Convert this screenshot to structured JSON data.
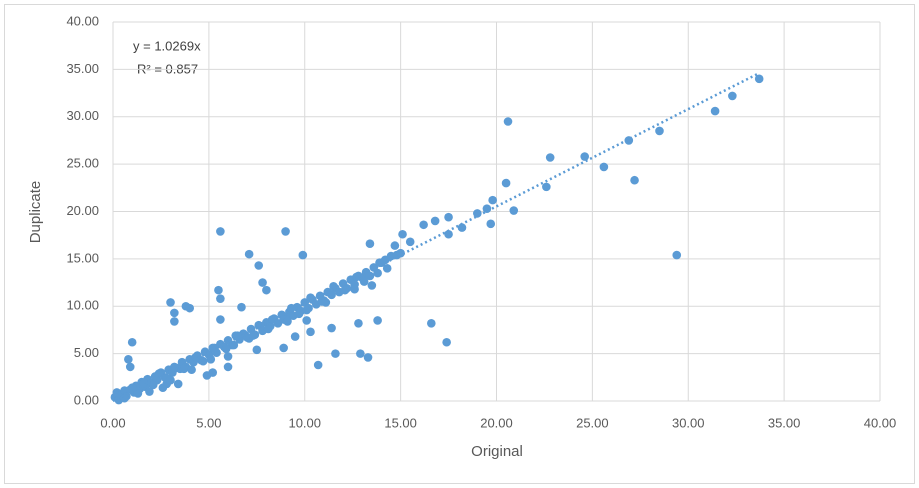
{
  "chart_data": {
    "type": "scatter",
    "x_label": "Original",
    "y_label": "Duplicate",
    "color": "#5b9bd5",
    "grid": true,
    "trendline": {
      "slope": 1.0269,
      "equation": "y = 1.0269x",
      "r2": 0.857,
      "r2_label": "R² = 0.857"
    },
    "xlim": [
      0,
      40
    ],
    "ylim": [
      0,
      40
    ],
    "xticks": [
      {
        "value": 0,
        "label": "0.00"
      },
      {
        "value": 5,
        "label": "5.00"
      },
      {
        "value": 10,
        "label": "10.00"
      },
      {
        "value": 15,
        "label": "15.00"
      },
      {
        "value": 20,
        "label": "20.00"
      },
      {
        "value": 25,
        "label": "25.00"
      },
      {
        "value": 30,
        "label": "30.00"
      },
      {
        "value": 35,
        "label": "35.00"
      },
      {
        "value": 40,
        "label": "40.00"
      }
    ],
    "yticks": [
      {
        "value": 0,
        "label": "0.00"
      },
      {
        "value": 5,
        "label": "5.00"
      },
      {
        "value": 10,
        "label": "10.00"
      },
      {
        "value": 15,
        "label": "15.00"
      },
      {
        "value": 20,
        "label": "20.00"
      },
      {
        "value": 25,
        "label": "25.00"
      },
      {
        "value": 30,
        "label": "30.00"
      },
      {
        "value": 35,
        "label": "35.00"
      },
      {
        "value": 40,
        "label": "40.00"
      }
    ],
    "x": [
      20.6,
      22.8,
      24.6,
      25.6,
      26.9,
      27.2,
      28.5,
      29.4,
      31.4,
      32.3,
      33.7,
      20.5,
      22.6,
      20.9,
      19.7,
      19.5,
      19.0,
      19.8,
      18.2,
      17.5,
      17.5,
      16.6,
      17.4,
      16.8,
      16.2,
      15.5,
      15.1,
      14.7,
      13.4,
      13.3,
      12.9,
      12.8,
      13.8,
      11.6,
      10.7,
      11.4,
      9.0,
      5.6,
      7.1,
      7.6,
      9.9,
      5.5,
      5.6,
      3.0,
      3.2,
      3.2,
      3.8,
      4.0,
      5.6,
      6.7,
      1.0,
      0.8,
      0.9,
      2.8,
      3.4,
      4.9,
      5.2,
      6.0,
      6.0,
      7.5,
      8.9,
      9.5,
      10.1,
      10.3,
      12.6,
      13.5,
      7.8,
      8.0,
      0.1,
      0.2,
      0.3,
      0.4,
      0.5,
      0.6,
      0.7,
      0.9,
      1.1,
      1.2,
      1.4,
      1.5,
      1.7,
      1.8,
      2.0,
      2.2,
      2.3,
      2.5,
      2.7,
      2.9,
      3.1,
      3.3,
      3.5,
      3.6,
      3.8,
      4.0,
      4.2,
      4.4,
      4.6,
      4.8,
      5.0,
      5.2,
      5.4,
      5.6,
      5.8,
      6.0,
      6.2,
      6.4,
      6.6,
      6.8,
      7.0,
      7.2,
      7.4,
      7.6,
      7.8,
      8.0,
      8.2,
      8.4,
      8.6,
      8.8,
      9.0,
      9.2,
      9.4,
      9.6,
      9.8,
      10.0,
      10.2,
      10.4,
      10.6,
      10.8,
      11.0,
      11.2,
      11.4,
      11.6,
      11.8,
      12.0,
      12.2,
      12.4,
      12.6,
      12.8,
      13.0,
      13.2,
      13.4,
      13.6,
      13.8,
      14.0,
      14.2,
      14.5,
      14.8,
      15.0,
      0.3,
      0.6,
      1.0,
      1.3,
      1.6,
      2.1,
      2.4,
      2.8,
      3.2,
      3.7,
      4.3,
      4.7,
      5.3,
      5.9,
      6.5,
      7.1,
      7.7,
      8.3,
      8.9,
      9.3,
      9.7,
      10.3,
      10.9,
      11.5,
      12.1,
      12.7,
      13.1,
      13.9,
      14.3,
      1.9,
      2.6,
      3.0,
      4.1,
      5.1,
      6.3,
      7.3,
      8.1,
      9.1,
      10.1,
      11.1
    ],
    "values": [
      29.5,
      25.7,
      25.8,
      24.7,
      27.5,
      23.3,
      28.5,
      15.4,
      30.6,
      32.2,
      34.0,
      23.0,
      22.6,
      20.1,
      18.7,
      20.3,
      19.8,
      21.2,
      18.3,
      17.6,
      19.4,
      8.2,
      6.2,
      19.0,
      18.6,
      16.8,
      17.6,
      16.4,
      16.6,
      4.6,
      5.0,
      8.2,
      8.5,
      5.0,
      3.8,
      7.7,
      17.9,
      17.9,
      15.5,
      14.3,
      15.4,
      11.7,
      10.8,
      10.4,
      9.3,
      8.4,
      10.0,
      9.8,
      8.6,
      9.9,
      6.2,
      4.4,
      3.6,
      1.8,
      1.8,
      2.7,
      3.0,
      3.6,
      4.7,
      5.4,
      5.6,
      6.8,
      8.5,
      7.3,
      11.8,
      12.2,
      12.5,
      11.7,
      0.4,
      0.9,
      0.2,
      0.6,
      0.8,
      1.1,
      0.5,
      1.2,
      0.9,
      1.6,
      1.3,
      2.0,
      1.5,
      2.3,
      1.9,
      2.6,
      2.2,
      3.0,
      2.5,
      3.3,
      3.0,
      3.5,
      3.4,
      4.1,
      3.6,
      4.4,
      4.1,
      4.8,
      4.3,
      5.2,
      4.9,
      5.6,
      5.1,
      6.0,
      5.7,
      6.4,
      5.9,
      6.9,
      6.5,
      7.1,
      6.7,
      7.6,
      7.0,
      8.0,
      7.4,
      8.3,
      7.9,
      8.7,
      8.2,
      9.1,
      8.8,
      9.4,
      9.0,
      9.9,
      9.5,
      10.4,
      9.8,
      10.7,
      10.2,
      11.1,
      10.6,
      11.5,
      11.2,
      11.9,
      11.5,
      12.4,
      11.9,
      12.8,
      12.3,
      13.2,
      13.0,
      13.6,
      13.2,
      14.1,
      13.5,
      14.6,
      14.9,
      15.3,
      15.4,
      15.6,
      0.1,
      0.3,
      1.4,
      0.8,
      1.9,
      1.7,
      2.9,
      2.4,
      3.6,
      3.4,
      4.6,
      4.2,
      5.6,
      5.5,
      6.9,
      6.6,
      7.9,
      8.6,
      8.6,
      9.8,
      9.2,
      10.9,
      10.5,
      12.1,
      11.7,
      13.1,
      12.6,
      14.6,
      14.0,
      1.0,
      1.4,
      2.2,
      3.3,
      4.4,
      5.9,
      6.9,
      7.6,
      8.4,
      9.6,
      10.4
    ]
  }
}
